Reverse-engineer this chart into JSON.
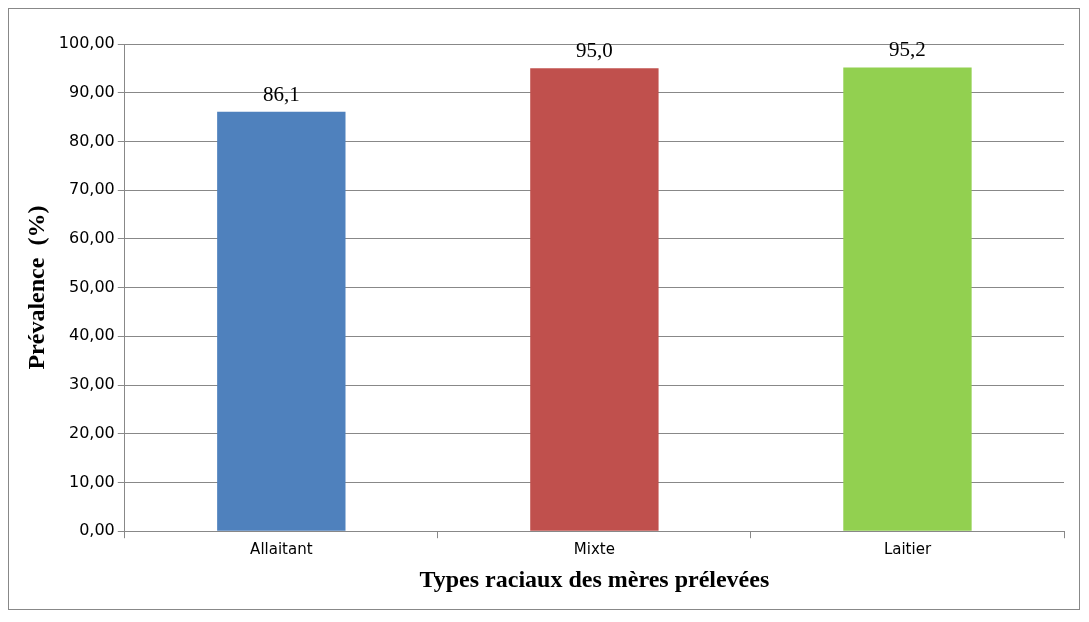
{
  "chart_data": {
    "type": "bar",
    "categories": [
      "Allaitant",
      "Mixte",
      "Laitier"
    ],
    "values": [
      86.1,
      95.0,
      95.2
    ],
    "colors": [
      "#4f81bd",
      "#c0504d",
      "#92d050"
    ],
    "value_labels": [
      "86,1",
      "95,0",
      "95,2"
    ],
    "xlabel": "Types raciaux des mères prélevées",
    "ylabel": "Prévalence  (%)",
    "ylim": [
      0,
      100
    ],
    "yticks": [
      {
        "value": 0,
        "label": "0,00"
      },
      {
        "value": 10,
        "label": "10,00"
      },
      {
        "value": 20,
        "label": "20,00"
      },
      {
        "value": 30,
        "label": "30,00"
      },
      {
        "value": 40,
        "label": "40,00"
      },
      {
        "value": 50,
        "label": "50,00"
      },
      {
        "value": 60,
        "label": "60,00"
      },
      {
        "value": 70,
        "label": "70,00"
      },
      {
        "value": 80,
        "label": "80,00"
      },
      {
        "value": 90,
        "label": "90,00"
      },
      {
        "value": 100,
        "label": "100,00"
      }
    ],
    "grid": "y",
    "legend": false
  }
}
